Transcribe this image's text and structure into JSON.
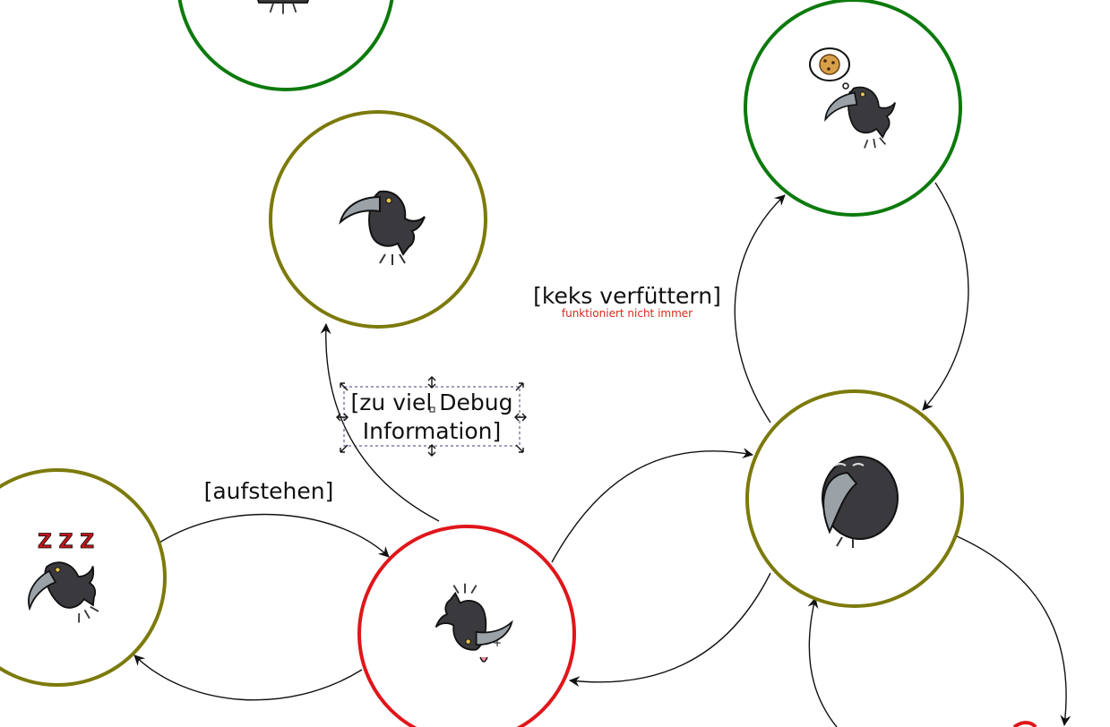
{
  "diagram": {
    "states": [
      {
        "id": "top-left-state",
        "border": "#0c7a0c",
        "icon": "raven-icon"
      },
      {
        "id": "grumpy-state",
        "border": "#7c7a0a",
        "icon": "raven-grumpy-icon"
      },
      {
        "id": "dreaming-cookie-state",
        "border": "#0c7a0c",
        "icon": "raven-dreaming-cookie-icon"
      },
      {
        "id": "sleeping-state",
        "border": "#7c7a0a",
        "icon": "raven-sleeping-icon"
      },
      {
        "id": "dead-state",
        "border": "#e0161a",
        "icon": "raven-dead-icon"
      },
      {
        "id": "tired-state",
        "border": "#7c7a0a",
        "icon": "raven-tired-icon"
      }
    ],
    "labels": {
      "keks": "[keks verfüttern]",
      "keks_note": "funktioniert nicht immer",
      "debug_line1": "[zu viel Debug",
      "debug_line2": "Information]",
      "aufstehen": "[aufstehen]"
    }
  }
}
